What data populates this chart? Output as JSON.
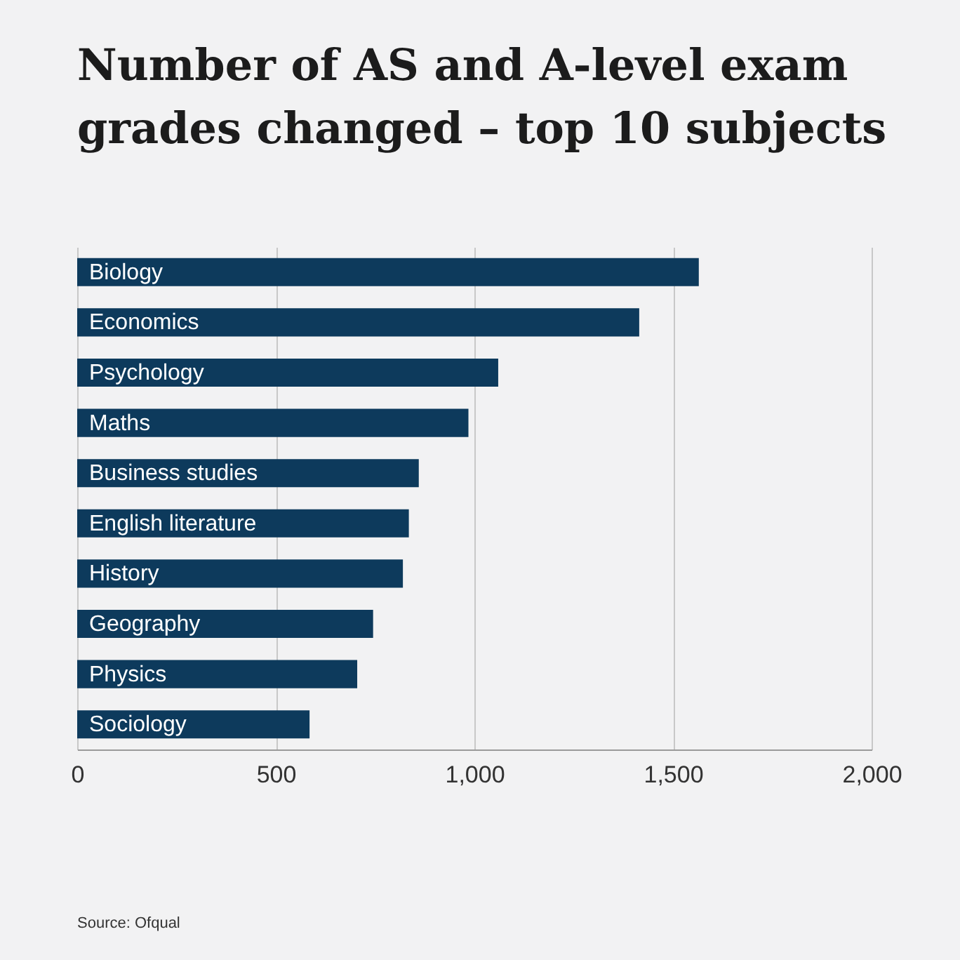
{
  "chart_data": {
    "type": "bar",
    "orientation": "horizontal",
    "title": "Number of AS and A-level exam grades changed – top 10 subjects",
    "categories": [
      "Biology",
      "Economics",
      "Psychology",
      "Maths",
      "Business studies",
      "English literature",
      "History",
      "Geography",
      "Physics",
      "Sociology"
    ],
    "values": [
      1565,
      1415,
      1060,
      985,
      860,
      835,
      820,
      745,
      705,
      585
    ],
    "color": "#0d3a5c",
    "xlim": [
      0,
      2000
    ],
    "xticks": [
      0,
      500,
      {
        "value": 1000,
        "label": "1,000"
      },
      {
        "value": 1500,
        "label": "1,500"
      },
      {
        "value": 2000,
        "label": "2,000"
      }
    ],
    "grid": "x",
    "annotations": [
      "Source: Ofqual"
    ]
  }
}
